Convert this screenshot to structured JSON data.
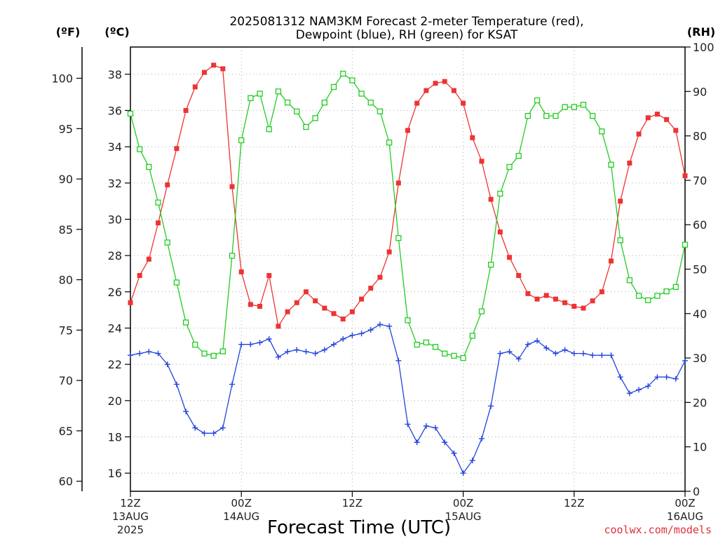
{
  "chart_data": {
    "type": "line",
    "title_lines": [
      "2025081312 NAM3KM Forecast 2-meter Temperature (red),",
      "Dewpoint (blue), RH (green) for KSAT"
    ],
    "xlabel": "Forecast Time (UTC)",
    "credit": "coolwx.com/models",
    "units": {
      "fahrenheit": "(ºF)",
      "celsius": "(ºC)",
      "rh": "(RH)"
    },
    "x_hours": [
      0,
      1,
      2,
      3,
      4,
      5,
      6,
      7,
      8,
      9,
      10,
      11,
      12,
      13,
      14,
      15,
      16,
      17,
      18,
      19,
      20,
      21,
      22,
      23,
      24,
      25,
      26,
      27,
      28,
      29,
      30,
      31,
      32,
      33,
      34,
      35,
      36,
      37,
      38,
      39,
      40,
      41,
      42,
      43,
      44,
      45,
      46,
      47,
      48,
      49,
      50,
      51,
      52,
      53,
      54,
      55,
      56,
      57,
      58,
      59,
      60
    ],
    "x_range": [
      0,
      60
    ],
    "x_ticks": [
      {
        "hour": 0,
        "lines": [
          "12Z",
          "13AUG",
          "2025"
        ]
      },
      {
        "hour": 12,
        "lines": [
          "00Z",
          "14AUG"
        ]
      },
      {
        "hour": 24,
        "lines": [
          "12Z"
        ]
      },
      {
        "hour": 36,
        "lines": [
          "00Z",
          "15AUG"
        ]
      },
      {
        "hour": 48,
        "lines": [
          "12Z"
        ]
      },
      {
        "hour": 60,
        "lines": [
          "00Z",
          "16AUG"
        ]
      }
    ],
    "celsius_axis": {
      "range": [
        15,
        39.5
      ],
      "ticks": [
        "16",
        "18",
        "20",
        "22",
        "24",
        "26",
        "28",
        "30",
        "32",
        "34",
        "36",
        "38"
      ]
    },
    "fahrenheit_axis": {
      "ticks": [
        "60",
        "65",
        "70",
        "75",
        "80",
        "85",
        "90",
        "95",
        "100"
      ]
    },
    "rh_axis": {
      "range": [
        0,
        100
      ],
      "ticks": [
        "0",
        "10",
        "20",
        "30",
        "40",
        "50",
        "60",
        "70",
        "80",
        "90",
        "100"
      ]
    },
    "series": [
      {
        "name": "Temperature",
        "axis": "celsius",
        "color": "#ee3333",
        "marker": "filled-square",
        "values": [
          25.4,
          26.9,
          27.8,
          29.8,
          31.9,
          33.9,
          36.0,
          37.3,
          38.1,
          38.5,
          38.3,
          31.8,
          27.1,
          25.3,
          25.2,
          26.9,
          24.1,
          24.9,
          25.4,
          26.0,
          25.5,
          25.1,
          24.8,
          24.5,
          24.9,
          25.6,
          26.2,
          26.8,
          28.2,
          32.0,
          34.9,
          36.4,
          37.1,
          37.5,
          37.6,
          37.1,
          36.4,
          34.5,
          33.2,
          31.1,
          29.3,
          27.9,
          26.9,
          25.9,
          25.6,
          25.8,
          25.6,
          25.4,
          25.2,
          25.1,
          25.5,
          26.0,
          27.7,
          31.0,
          33.1,
          34.7,
          35.6,
          35.8,
          35.5,
          34.9,
          32.4
        ]
      },
      {
        "name": "Dewpoint",
        "axis": "celsius",
        "color": "#2244dd",
        "marker": "plus",
        "values": [
          22.5,
          22.6,
          22.7,
          22.6,
          22.0,
          20.9,
          19.4,
          18.5,
          18.2,
          18.2,
          18.5,
          20.9,
          23.1,
          23.1,
          23.2,
          23.4,
          22.4,
          22.7,
          22.8,
          22.7,
          22.6,
          22.8,
          23.1,
          23.4,
          23.6,
          23.7,
          23.9,
          24.2,
          24.1,
          22.2,
          18.7,
          17.7,
          18.6,
          18.5,
          17.7,
          17.1,
          16.0,
          16.7,
          17.9,
          19.7,
          22.6,
          22.7,
          22.3,
          23.1,
          23.3,
          22.9,
          22.6,
          22.8,
          22.6,
          22.6,
          22.5,
          22.5,
          22.5,
          21.3,
          20.4,
          20.6,
          20.8,
          21.3,
          21.3,
          21.2,
          22.2
        ]
      },
      {
        "name": "RH",
        "axis": "rh",
        "color": "#22cc22",
        "marker": "open-square",
        "values": [
          85,
          77,
          73,
          65,
          56,
          47,
          38,
          33,
          31,
          30.5,
          31.5,
          53,
          79,
          88.5,
          89.5,
          81.5,
          90,
          87.5,
          85.5,
          82,
          84,
          87.5,
          91,
          94,
          92.5,
          89.5,
          87.5,
          85.5,
          78.5,
          57,
          38.5,
          33,
          33.5,
          32.5,
          31,
          30.5,
          30,
          35,
          40.5,
          51,
          67,
          73,
          75.5,
          84.5,
          88,
          84.5,
          84.5,
          86.5,
          86.5,
          87,
          84.5,
          81,
          73.5,
          56.5,
          47.5,
          44,
          43,
          44,
          45,
          46,
          55.5
        ]
      }
    ]
  }
}
